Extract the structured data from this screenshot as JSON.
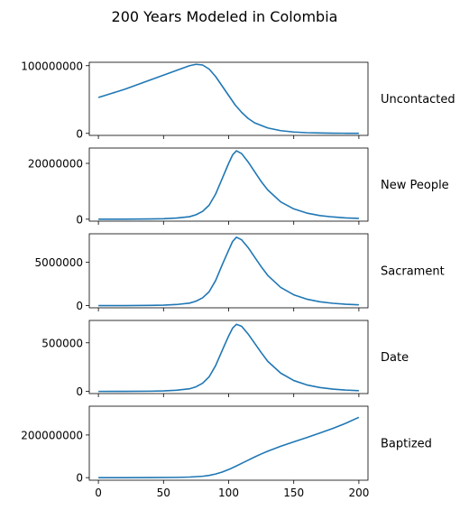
{
  "figure": {
    "title": "200 Years Modeled in Colombia"
  },
  "style": {
    "line_color": "#1f77b4",
    "frame_color": "#000000"
  },
  "chart_data": [
    {
      "type": "line",
      "label": "Uncontacted",
      "xlim": [
        -7,
        207
      ],
      "ylim": [
        -3000000,
        105000000
      ],
      "yticks": [
        0,
        100000000
      ],
      "ytick_labels": [
        "0",
        "100000000"
      ],
      "xticks": [
        0,
        50,
        100,
        150,
        200
      ],
      "xtick_labels": [],
      "x": [
        0,
        10,
        20,
        30,
        40,
        50,
        60,
        70,
        75,
        80,
        85,
        90,
        95,
        100,
        105,
        110,
        115,
        120,
        130,
        140,
        150,
        160,
        170,
        180,
        190,
        200
      ],
      "y": [
        53000000,
        59000000,
        65000000,
        72000000,
        79000000,
        86000000,
        93000000,
        100000000,
        102000000,
        101000000,
        95000000,
        84000000,
        70000000,
        56000000,
        42000000,
        31000000,
        22000000,
        15500000,
        8000000,
        4000000,
        2000000,
        1000000,
        600000,
        300000,
        150000,
        100000
      ]
    },
    {
      "type": "line",
      "label": "New People",
      "xlim": [
        -7,
        207
      ],
      "ylim": [
        -700000,
        25500000
      ],
      "yticks": [
        0,
        20000000
      ],
      "ytick_labels": [
        "0",
        "20000000"
      ],
      "xticks": [
        0,
        50,
        100,
        150,
        200
      ],
      "xtick_labels": [],
      "x": [
        0,
        20,
        40,
        50,
        60,
        70,
        75,
        80,
        85,
        90,
        95,
        100,
        103,
        106,
        110,
        115,
        120,
        125,
        130,
        140,
        150,
        160,
        170,
        180,
        190,
        200
      ],
      "y": [
        0,
        20000,
        80000,
        180000,
        400000,
        900000,
        1600000,
        2800000,
        5000000,
        9000000,
        14500000,
        20000000,
        23000000,
        24500000,
        23500000,
        20500000,
        17000000,
        13500000,
        10500000,
        6200000,
        3700000,
        2200000,
        1300000,
        800000,
        450000,
        280000
      ]
    },
    {
      "type": "line",
      "label": "Sacrament",
      "xlim": [
        -7,
        207
      ],
      "ylim": [
        -250000,
        8300000
      ],
      "yticks": [
        0,
        5000000
      ],
      "ytick_labels": [
        "0",
        "5000000"
      ],
      "xticks": [
        0,
        50,
        100,
        150,
        200
      ],
      "xtick_labels": [],
      "x": [
        0,
        20,
        40,
        50,
        60,
        70,
        75,
        80,
        85,
        90,
        95,
        100,
        103,
        106,
        110,
        115,
        120,
        125,
        130,
        140,
        150,
        160,
        170,
        180,
        190,
        200
      ],
      "y": [
        0,
        7000,
        25000,
        60000,
        130000,
        290000,
        520000,
        900000,
        1600000,
        2900000,
        4700000,
        6400000,
        7400000,
        7900000,
        7600000,
        6700000,
        5600000,
        4500000,
        3500000,
        2100000,
        1250000,
        750000,
        450000,
        270000,
        160000,
        100000
      ]
    },
    {
      "type": "line",
      "label": "Date",
      "xlim": [
        -7,
        207
      ],
      "ylim": [
        -22000,
        730000
      ],
      "yticks": [
        0,
        500000
      ],
      "ytick_labels": [
        "0",
        "500000"
      ],
      "xticks": [
        0,
        50,
        100,
        150,
        200
      ],
      "xtick_labels": [],
      "x": [
        0,
        20,
        40,
        50,
        60,
        70,
        75,
        80,
        85,
        90,
        95,
        100,
        103,
        106,
        110,
        115,
        120,
        125,
        130,
        140,
        150,
        160,
        170,
        180,
        190,
        200
      ],
      "y": [
        0,
        600,
        2300,
        5500,
        12000,
        27000,
        48000,
        84000,
        150000,
        265000,
        420000,
        570000,
        650000,
        690000,
        670000,
        590000,
        495000,
        400000,
        310000,
        188000,
        112000,
        67000,
        40000,
        24000,
        14000,
        8000
      ]
    },
    {
      "type": "line",
      "label": "Baptized",
      "xlim": [
        -7,
        207
      ],
      "ylim": [
        -12000000,
        335000000
      ],
      "yticks": [
        0,
        200000000
      ],
      "ytick_labels": [
        "0",
        "200000000"
      ],
      "xticks": [
        0,
        50,
        100,
        150,
        200
      ],
      "xtick_labels": [
        "0",
        "50",
        "100",
        "150",
        "200"
      ],
      "x": [
        0,
        20,
        40,
        60,
        70,
        80,
        85,
        90,
        95,
        100,
        105,
        110,
        115,
        120,
        125,
        130,
        140,
        150,
        160,
        170,
        180,
        190,
        200
      ],
      "y": [
        0,
        50000,
        250000,
        1200000,
        2800000,
        6500000,
        10500000,
        17000000,
        26000000,
        38000000,
        52000000,
        67000000,
        82000000,
        97000000,
        111000000,
        124000000,
        147000000,
        168000000,
        188000000,
        209000000,
        231000000,
        255000000,
        283000000
      ]
    }
  ]
}
